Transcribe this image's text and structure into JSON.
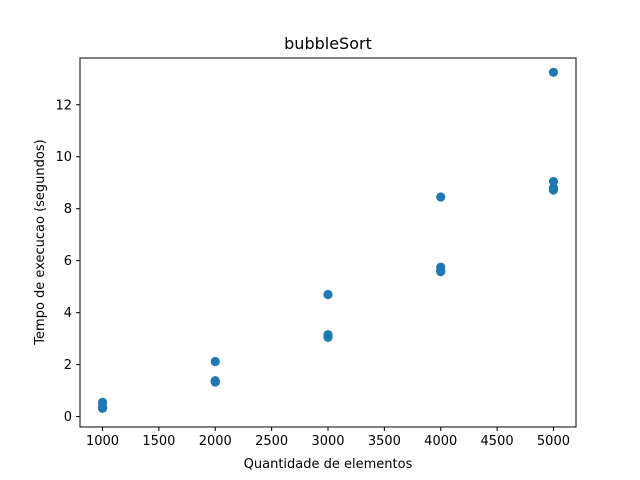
{
  "chart_data": {
    "type": "scatter",
    "title": "bubbleSort",
    "xlabel": "Quantidade de elementos",
    "ylabel": "Tempo de execucao (segundos)",
    "xlim": [
      800,
      5200
    ],
    "ylim": [
      -0.4,
      13.8
    ],
    "xticks": [
      1000,
      1500,
      2000,
      2500,
      3000,
      3500,
      4000,
      4500,
      5000
    ],
    "yticks": [
      0,
      2,
      4,
      6,
      8,
      10,
      12
    ],
    "grid": false,
    "marker_color": "#1f77b4",
    "series": [
      {
        "points": [
          [
            1000,
            0.55
          ],
          [
            1000,
            0.38
          ],
          [
            1000,
            0.34
          ],
          [
            1000,
            0.32
          ],
          [
            2000,
            2.12
          ],
          [
            2000,
            1.38
          ],
          [
            2000,
            1.35
          ],
          [
            2000,
            1.33
          ],
          [
            3000,
            4.7
          ],
          [
            3000,
            3.15
          ],
          [
            3000,
            3.1
          ],
          [
            3000,
            3.05
          ],
          [
            4000,
            8.45
          ],
          [
            4000,
            5.75
          ],
          [
            4000,
            5.62
          ],
          [
            4000,
            5.58
          ],
          [
            5000,
            13.25
          ],
          [
            5000,
            9.05
          ],
          [
            5000,
            8.8
          ],
          [
            5000,
            8.72
          ]
        ]
      }
    ]
  }
}
